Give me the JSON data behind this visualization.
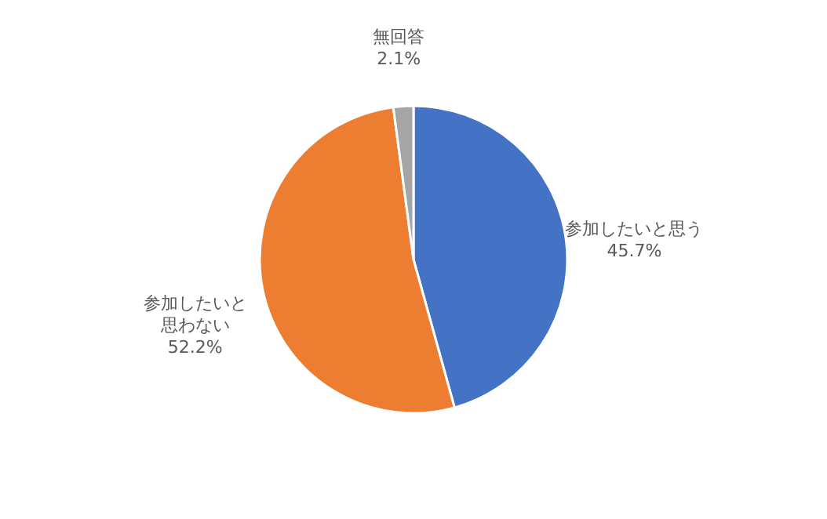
{
  "chart_data": {
    "type": "pie",
    "categories": [
      "参加したいと思う",
      "参加したいと思わない",
      "無回答"
    ],
    "values": [
      45.7,
      52.2,
      2.1
    ],
    "value_labels": [
      "45.7%",
      "52.2%",
      "2.1%"
    ],
    "colors": [
      "#4472c4",
      "#ed7d31",
      "#a5a5a5"
    ]
  }
}
